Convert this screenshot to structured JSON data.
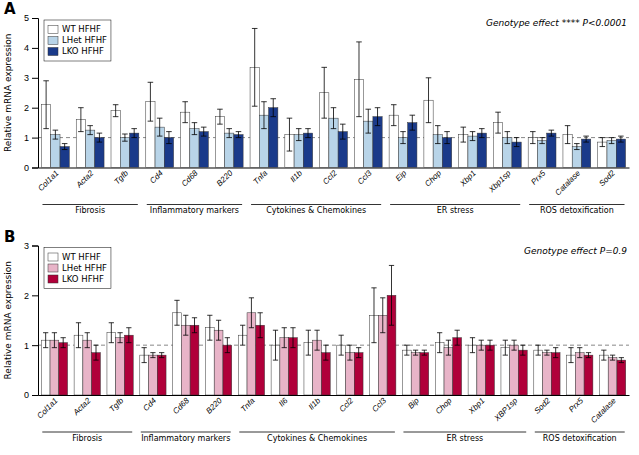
{
  "chart_data": [
    {
      "type": "bar",
      "title": "A",
      "categories": [
        "Col1a1",
        "Acta2",
        "Tgfb",
        "Cd4",
        "Cd68",
        "B220",
        "Tnfa",
        "Il1b",
        "Ccl2",
        "Ccl3",
        "Eip",
        "Chop",
        "Xbp1",
        "Xbp1sp",
        "Prx5",
        "Catalase",
        "Sod2"
      ],
      "series": [
        {
          "name": "WT HFHF",
          "color": "white",
          "values": [
            2.1,
            1.6,
            1.9,
            2.2,
            1.85,
            1.7,
            3.35,
            1.1,
            2.5,
            2.95,
            1.75,
            2.25,
            1.1,
            1.5,
            1.0,
            1.1,
            0.85
          ],
          "errors": [
            0.8,
            0.4,
            0.2,
            0.65,
            0.35,
            0.25,
            1.3,
            0.55,
            0.85,
            1.25,
            0.35,
            0.75,
            0.25,
            0.35,
            0.2,
            0.3,
            0.15
          ]
        },
        {
          "name": "LHet HFHF",
          "color": "#b8d4e8",
          "values": [
            1.1,
            1.25,
            1.0,
            1.35,
            1.3,
            1.15,
            1.75,
            1.1,
            1.65,
            1.55,
            1.0,
            1.1,
            1.05,
            1.0,
            0.9,
            0.7,
            0.9
          ],
          "errors": [
            0.15,
            0.15,
            0.12,
            0.3,
            0.2,
            0.15,
            0.45,
            0.2,
            0.35,
            0.4,
            0.2,
            0.3,
            0.15,
            0.2,
            0.1,
            0.1,
            0.1
          ]
        },
        {
          "name": "LKO HFHF",
          "color": "#1a3a8a",
          "values": [
            0.7,
            1.0,
            1.15,
            1.0,
            1.2,
            1.1,
            2.0,
            1.15,
            1.2,
            1.7,
            1.5,
            1.0,
            1.15,
            0.85,
            1.15,
            0.95,
            0.95
          ],
          "errors": [
            0.1,
            0.15,
            0.15,
            0.2,
            0.15,
            0.1,
            0.3,
            0.15,
            0.25,
            0.3,
            0.25,
            0.2,
            0.15,
            0.15,
            0.1,
            0.1,
            0.1
          ]
        }
      ],
      "groups": [
        {
          "label": "Fibrosis",
          "from": "Col1a1",
          "to": "Tgfb"
        },
        {
          "label": "Inflammatory markers",
          "from": "Cd4",
          "to": "B220"
        },
        {
          "label": "Cytokines & Chemokines",
          "from": "Tnfa",
          "to": "Ccl3"
        },
        {
          "label": "ER stress",
          "from": "Eip",
          "to": "Xbp1sp"
        },
        {
          "label": "ROS detoxification",
          "from": "Prx5",
          "to": "Sod2"
        }
      ],
      "reference_line": 1,
      "ylim": [
        0,
        5
      ],
      "yticks": [
        0,
        1,
        2,
        3,
        4,
        5
      ],
      "ylabel": "Relative mRNA expression",
      "annotation": "Genotype effect **** P<0.0001",
      "legend": "upper left"
    },
    {
      "type": "bar",
      "title": "B",
      "categories": [
        "Col1a1",
        "Acta2",
        "Tgfb",
        "Cd4",
        "Cd68",
        "B220",
        "Tnfa",
        "Il6",
        "Il1b",
        "Ccl2",
        "Ccl3",
        "Bip",
        "Chop",
        "Xbp1",
        "XBP1sp",
        "Sod2",
        "Prx5",
        "Catalase"
      ],
      "series": [
        {
          "name": "WT HFHF",
          "color": "white",
          "values": [
            1.1,
            1.2,
            1.25,
            0.8,
            1.65,
            1.35,
            1.2,
            1.0,
            1.05,
            1.0,
            1.6,
            0.9,
            1.05,
            1.0,
            0.95,
            0.9,
            0.8,
            0.8
          ],
          "errors": [
            0.15,
            0.25,
            0.2,
            0.15,
            0.25,
            0.25,
            0.2,
            0.3,
            0.25,
            0.2,
            0.55,
            0.1,
            0.2,
            0.15,
            0.15,
            0.1,
            0.15,
            0.1
          ]
        },
        {
          "name": "LHet HFHF",
          "color": "#e8b4c8",
          "values": [
            1.1,
            1.1,
            1.15,
            0.8,
            1.4,
            1.3,
            1.65,
            1.15,
            1.1,
            0.85,
            1.6,
            0.85,
            0.95,
            1.0,
            1.0,
            0.85,
            0.85,
            0.75
          ],
          "errors": [
            0.15,
            0.15,
            0.1,
            0.05,
            0.2,
            0.2,
            0.3,
            0.2,
            0.2,
            0.15,
            0.35,
            0.05,
            0.15,
            0.1,
            0.1,
            0.05,
            0.1,
            0.05
          ]
        },
        {
          "name": "LKO HFHF",
          "color": "#b0003a",
          "values": [
            1.05,
            0.85,
            1.2,
            0.8,
            1.4,
            1.0,
            1.4,
            1.15,
            0.85,
            0.85,
            2.0,
            0.85,
            1.15,
            1.0,
            0.9,
            0.85,
            0.8,
            0.7
          ],
          "errors": [
            0.1,
            0.15,
            0.15,
            0.05,
            0.15,
            0.15,
            0.25,
            0.2,
            0.15,
            0.1,
            0.6,
            0.05,
            0.15,
            0.1,
            0.1,
            0.1,
            0.05,
            0.05
          ]
        }
      ],
      "groups": [
        {
          "label": "Fibrosis",
          "from": "Col1a1",
          "to": "Tgfb"
        },
        {
          "label": "Inflammatory markers",
          "from": "Cd4",
          "to": "B220"
        },
        {
          "label": "Cytokines & Chemokines",
          "from": "Tnfa",
          "to": "Ccl3"
        },
        {
          "label": "ER stress",
          "from": "Bip",
          "to": "XBP1sp"
        },
        {
          "label": "ROS detoxification",
          "from": "Sod2",
          "to": "Catalase"
        }
      ],
      "reference_line": 1,
      "ylim": [
        0,
        3
      ],
      "yticks": [
        0,
        1,
        2,
        3
      ],
      "ylabel": "Relative mRNA expression",
      "annotation": "Genotype effect P=0.9",
      "legend": "upper left"
    }
  ]
}
